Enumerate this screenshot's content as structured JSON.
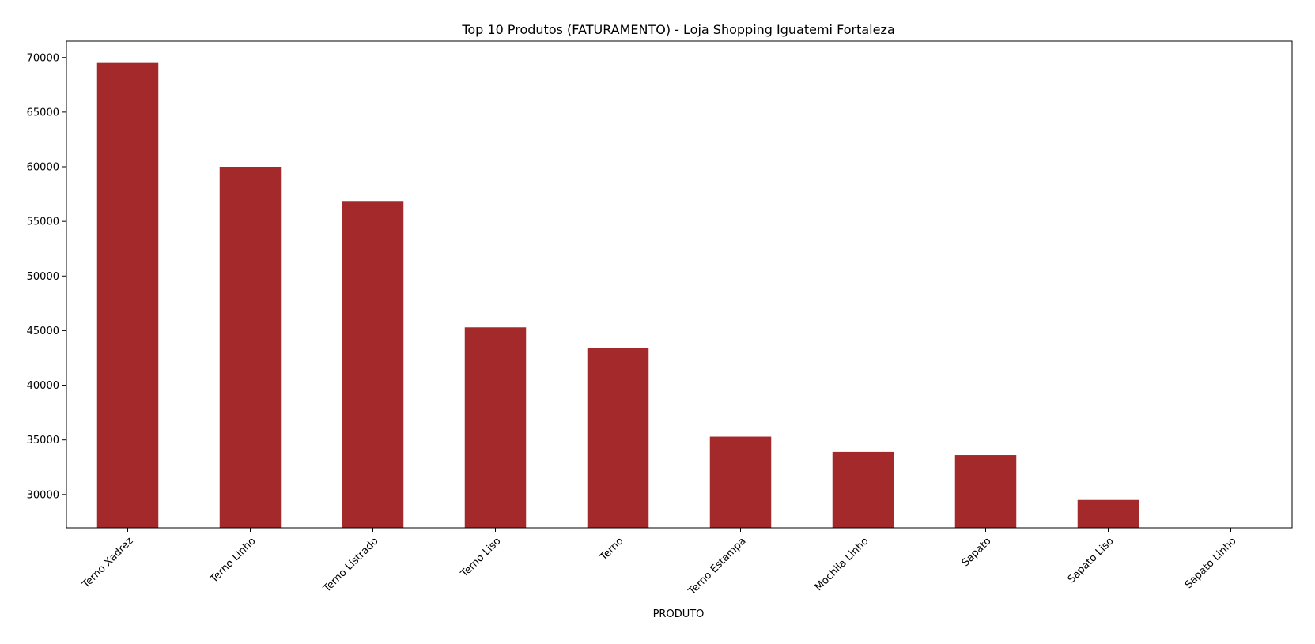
{
  "chart_data": {
    "type": "bar",
    "title": "Top 10 Produtos (FATURAMENTO) - Loja Shopping Iguatemi Fortaleza",
    "xlabel": "PRODUTO",
    "ylabel": "",
    "categories": [
      "Terno Xadrez",
      "Terno Linho",
      "Terno Listrado",
      "Terno Liso",
      "Terno",
      "Terno Estampa",
      "Mochila Linho",
      "Sapato",
      "Sapato Liso",
      "Sapato Linho"
    ],
    "values": [
      69500,
      60000,
      56800,
      45300,
      43400,
      35300,
      33900,
      33600,
      29500,
      26950
    ],
    "ylim": [
      26950,
      71500
    ],
    "yticks": [
      30000,
      35000,
      40000,
      45000,
      50000,
      55000,
      60000,
      65000,
      70000
    ],
    "ytick_labels": [
      "30000",
      "35000",
      "40000",
      "45000",
      "50000",
      "55000",
      "60000",
      "65000",
      "70000"
    ],
    "bar_color": "#a3292b",
    "grid": false,
    "legend": "none",
    "xtick_rotation": "45deg"
  }
}
